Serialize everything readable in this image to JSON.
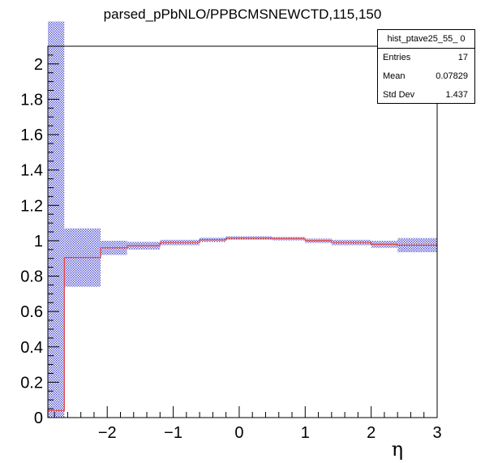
{
  "title": "parsed_pPbNLO/PPBCMSNEWCTD,115,150",
  "stats_box": {
    "name": "hist_ptave25_55_ 0",
    "rows": [
      {
        "label": "Entries",
        "value": "17"
      },
      {
        "label": "Mean",
        "value": "0.07829"
      },
      {
        "label": "Std Dev",
        "value": "1.437"
      }
    ]
  },
  "colors": {
    "line": "#e8413c",
    "band": "#2a2ac8",
    "axis": "#000000"
  },
  "chart_data": {
    "type": "line",
    "style": "histogram-step",
    "xlabel": "η",
    "ylabel": "",
    "xlim": [
      -2.9,
      3.0
    ],
    "ylim": [
      0,
      2.1
    ],
    "x_ticks": [
      "−2",
      "−1",
      "0",
      "1",
      "2",
      "3"
    ],
    "x_tick_values": [
      -2,
      -1,
      0,
      1,
      2,
      3
    ],
    "y_ticks": [
      "0",
      "0.2",
      "0.4",
      "0.6",
      "0.8",
      "1",
      "1.2",
      "1.4",
      "1.6",
      "1.8",
      "2"
    ],
    "y_tick_values": [
      0,
      0.2,
      0.4,
      0.6,
      0.8,
      1,
      1.2,
      1.4,
      1.6,
      1.8,
      2
    ],
    "grid": false,
    "legend": "none",
    "bins": [
      {
        "x0": -2.9,
        "x1": -2.65,
        "y": 0.04,
        "err": 2.2
      },
      {
        "x0": -2.65,
        "x1": -2.1,
        "y": 0.905,
        "err": 0.165
      },
      {
        "x0": -2.1,
        "x1": -1.7,
        "y": 0.96,
        "err": 0.04
      },
      {
        "x0": -1.7,
        "x1": -1.2,
        "y": 0.972,
        "err": 0.022
      },
      {
        "x0": -1.2,
        "x1": -0.6,
        "y": 0.99,
        "err": 0.015
      },
      {
        "x0": -0.6,
        "x1": -0.2,
        "y": 1.005,
        "err": 0.012
      },
      {
        "x0": -0.2,
        "x1": 0.5,
        "y": 1.015,
        "err": 0.01
      },
      {
        "x0": 0.5,
        "x1": 1.0,
        "y": 1.012,
        "err": 0.01
      },
      {
        "x0": 1.0,
        "x1": 1.4,
        "y": 1.0,
        "err": 0.012
      },
      {
        "x0": 1.4,
        "x1": 2.0,
        "y": 0.99,
        "err": 0.015
      },
      {
        "x0": 2.0,
        "x1": 2.4,
        "y": 0.98,
        "err": 0.02
      },
      {
        "x0": 2.4,
        "x1": 3.0,
        "y": 0.975,
        "err": 0.04
      }
    ]
  }
}
